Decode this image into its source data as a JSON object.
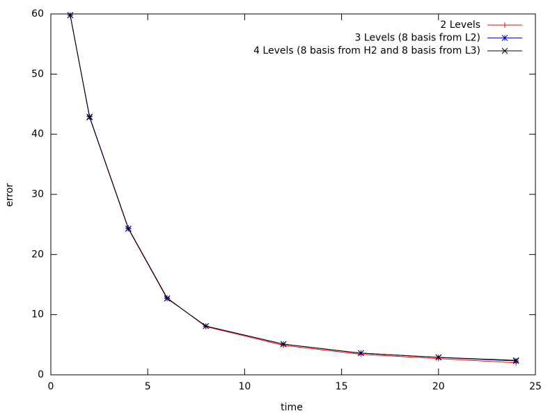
{
  "chart_data": {
    "type": "line",
    "xlabel": "time",
    "ylabel": "error",
    "x": [
      1,
      2,
      4,
      6,
      8,
      12,
      16,
      20,
      24
    ],
    "series": [
      {
        "name": "2 Levels",
        "color": "#ff0000",
        "marker": "plus",
        "values": [
          59.8,
          42.9,
          24.4,
          12.8,
          8.0,
          4.9,
          3.4,
          2.7,
          2.0
        ]
      },
      {
        "name": "3 Levels (8 basis from L2)",
        "color": "#0000c0",
        "marker": "star",
        "values": [
          59.8,
          42.9,
          24.3,
          12.7,
          8.1,
          5.1,
          3.6,
          2.9,
          2.3
        ]
      },
      {
        "name": "4 Levels (8 basis from H2 and 8 basis from L3)",
        "color": "#000000",
        "marker": "cross",
        "values": [
          59.8,
          42.8,
          24.3,
          12.7,
          8.1,
          5.1,
          3.6,
          2.9,
          2.4
        ]
      }
    ],
    "xlim": [
      0,
      25
    ],
    "xticks": [
      0,
      5,
      10,
      15,
      20,
      25
    ],
    "ylim": [
      0,
      60
    ],
    "yticks": [
      0,
      10,
      20,
      30,
      40,
      50,
      60
    ],
    "legend": "top-right"
  }
}
